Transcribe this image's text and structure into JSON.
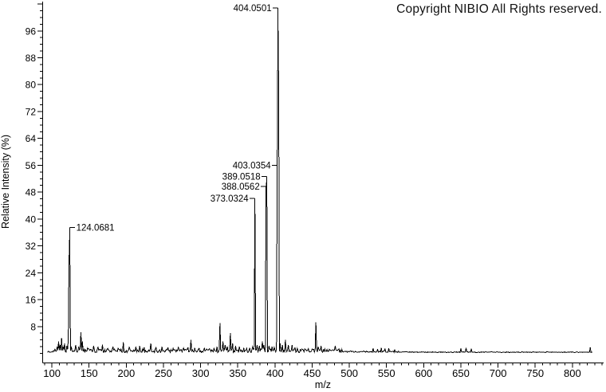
{
  "header": {
    "copyright": "Copyright NIBIO All Rights reserved."
  },
  "chart_data": {
    "type": "line",
    "subtype": "mass-spectrum",
    "title": "",
    "xlabel": "m/z",
    "ylabel": "Relative Intensity (%)",
    "xlim": [
      87,
      842
    ],
    "ylim": [
      0,
      105
    ],
    "grid": false,
    "background": "#ffffff",
    "line_color": "#000000",
    "x_major_tick_step": 50,
    "x_minor_tick_step": 10,
    "x_tick_labels": [
      100,
      150,
      200,
      250,
      300,
      350,
      400,
      450,
      500,
      550,
      600,
      650,
      700,
      750,
      800
    ],
    "y_major_tick_step": 8,
    "y_minor_tick_step": 2,
    "y_tick_labels": [
      8,
      16,
      24,
      32,
      40,
      48,
      56,
      64,
      72,
      80,
      88,
      96
    ],
    "labeled_peaks": [
      {
        "label": "124.0681",
        "mz": 124.0681,
        "intensity": 36,
        "side": "right",
        "dy": 6
      },
      {
        "label": "373.0324",
        "mz": 373.0324,
        "intensity": 45,
        "side": "left",
        "dy": 5
      },
      {
        "label": "388.0562",
        "mz": 388.0562,
        "intensity": 49,
        "side": "left",
        "dy": 3
      },
      {
        "label": "389.0518",
        "mz": 389.0518,
        "intensity": 52,
        "side": "left",
        "dy": 3
      },
      {
        "label": "403.0354",
        "mz": 403.0354,
        "intensity": 55.5,
        "side": "left",
        "dy": 2
      },
      {
        "label": "404.0501",
        "mz": 404.0501,
        "intensity": 100,
        "side": "left",
        "dy": 12
      }
    ],
    "peaks": [
      [
        104,
        1.2
      ],
      [
        107,
        2
      ],
      [
        109,
        3.5
      ],
      [
        111,
        2.5
      ],
      [
        113,
        4.5
      ],
      [
        115,
        2
      ],
      [
        117,
        3
      ],
      [
        120,
        2.2
      ],
      [
        122,
        4
      ],
      [
        123,
        27.5
      ],
      [
        124.0681,
        36
      ],
      [
        126,
        2
      ],
      [
        132,
        2.5
      ],
      [
        136,
        2
      ],
      [
        139,
        6.3
      ],
      [
        141,
        3.5
      ],
      [
        148,
        1.6
      ],
      [
        156,
        2.2
      ],
      [
        162,
        1.8
      ],
      [
        168,
        2.6
      ],
      [
        175,
        1.5
      ],
      [
        182,
        2
      ],
      [
        189,
        1.5
      ],
      [
        196,
        3.3
      ],
      [
        204,
        1.8
      ],
      [
        213,
        2
      ],
      [
        218,
        2.2
      ],
      [
        224,
        1.8
      ],
      [
        233,
        3
      ],
      [
        240,
        1.7
      ],
      [
        248,
        2
      ],
      [
        256,
        1.8
      ],
      [
        263,
        1.5
      ],
      [
        270,
        1.8
      ],
      [
        277,
        1.6
      ],
      [
        283,
        1.8
      ],
      [
        287,
        4
      ],
      [
        292,
        1.6
      ],
      [
        298,
        1.5
      ],
      [
        305,
        1.5
      ],
      [
        312,
        1.4
      ],
      [
        318,
        1.6
      ],
      [
        322,
        2
      ],
      [
        326,
        9
      ],
      [
        330,
        3.5
      ],
      [
        333,
        2.5
      ],
      [
        336,
        2
      ],
      [
        340,
        6
      ],
      [
        343,
        3
      ],
      [
        347,
        2.2
      ],
      [
        352,
        2
      ],
      [
        358,
        1.6
      ],
      [
        362,
        1.5
      ],
      [
        366,
        1.6
      ],
      [
        370,
        2
      ],
      [
        373.0324,
        45
      ],
      [
        376,
        2.5
      ],
      [
        379,
        2.2
      ],
      [
        383,
        3.5
      ],
      [
        385,
        2.5
      ],
      [
        388.0562,
        49
      ],
      [
        389.0518,
        52
      ],
      [
        392,
        2.2
      ],
      [
        396,
        2
      ],
      [
        399,
        1.8
      ],
      [
        403.0354,
        55.5
      ],
      [
        404.0501,
        100
      ],
      [
        405,
        78
      ],
      [
        407,
        3
      ],
      [
        410,
        2.5
      ],
      [
        414,
        4
      ],
      [
        418,
        2.5
      ],
      [
        423,
        2.5
      ],
      [
        427,
        1.8
      ],
      [
        430,
        1.5
      ],
      [
        436,
        1.3
      ],
      [
        440,
        1.3
      ],
      [
        445,
        1.4
      ],
      [
        450,
        1.3
      ],
      [
        455,
        9.3
      ],
      [
        458,
        2
      ],
      [
        462,
        2.2
      ],
      [
        467,
        1.3
      ],
      [
        473,
        1.2
      ],
      [
        481,
        2.2
      ],
      [
        486,
        1.3
      ],
      [
        490,
        1.2
      ],
      [
        532,
        1.5
      ],
      [
        538,
        1.3
      ],
      [
        543,
        1.6
      ],
      [
        548,
        1.3
      ],
      [
        553,
        1.5
      ],
      [
        561,
        1.2
      ],
      [
        650,
        1.5
      ],
      [
        657,
        1.6
      ],
      [
        664,
        1.4
      ],
      [
        824,
        1.8
      ]
    ]
  }
}
